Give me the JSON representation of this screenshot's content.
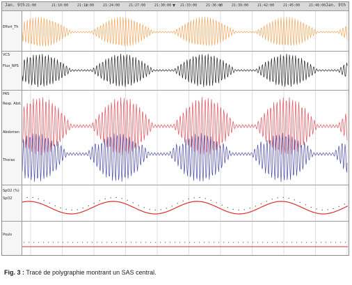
{
  "toolbar": {
    "date_left": "Jan. 9th",
    "date_right": "Jan. 9th",
    "times": [
      "21:00",
      "21:10:00",
      "21:18:00",
      "21:24:00",
      "21:27:00",
      "21:30:00",
      "21:33:00",
      "21:36:00",
      "21:39:00",
      "21:42:00",
      "21:45:00",
      "21:48:00"
    ]
  },
  "channels": {
    "effort_top": "Effort_Th",
    "effort_bot": "VCS",
    "flow_top": "Flux_NPS",
    "flow_bot": "PAS",
    "thorax_top": "Resp. Abd.",
    "thorax_mid": "Abdomen",
    "thorax_low": "Thorax",
    "thorax_bot": "SpO2 (%)",
    "spo2_top": "SpO2",
    "hr_top": "Pouls"
  },
  "colors": {
    "orange": "#f0a55a",
    "black": "#222222",
    "red": "#e0505a",
    "blue": "#4a4aa8",
    "sat": "#d93030",
    "grid": "#bdbdbd"
  },
  "caption": {
    "fig": "Fig. 3 :",
    "text": " Tracé de polygraphie montrant un SAS central."
  }
}
